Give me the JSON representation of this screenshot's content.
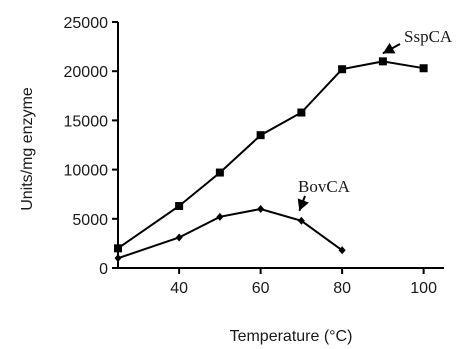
{
  "chart_data": {
    "type": "line",
    "title": "",
    "xlabel": "Temperature (°C)",
    "ylabel": "Units/mg enzyme",
    "xlim": [
      25,
      105
    ],
    "ylim": [
      0,
      25000
    ],
    "x_ticks": [
      40,
      60,
      80,
      100
    ],
    "y_ticks": [
      0,
      5000,
      10000,
      15000,
      20000,
      25000
    ],
    "x_tick_labels": [
      "40",
      "60",
      "80",
      "100"
    ],
    "y_tick_labels": [
      "0",
      "5000",
      "10000",
      "15000",
      "20000",
      "25000"
    ],
    "grid": false,
    "series": [
      {
        "name": "SspCA",
        "marker": "square",
        "x": [
          25,
          40,
          50,
          60,
          70,
          80,
          90,
          100
        ],
        "y": [
          2000,
          6300,
          9700,
          13500,
          15800,
          20200,
          21000,
          20300
        ]
      },
      {
        "name": "BovCA",
        "marker": "diamond",
        "x": [
          25,
          40,
          50,
          60,
          70,
          80
        ],
        "y": [
          1000,
          3100,
          5200,
          6000,
          4800,
          1800
        ]
      }
    ],
    "annotations": [
      {
        "text": "SspCA",
        "series": "SspCA",
        "points_to_x": 90,
        "points_to_y": 21000
      },
      {
        "text": "BovCA",
        "series": "BovCA",
        "points_to_x": 70,
        "points_to_y": 4800
      }
    ],
    "colors": {
      "line": "#000000",
      "text": "#1a1a1a"
    }
  }
}
